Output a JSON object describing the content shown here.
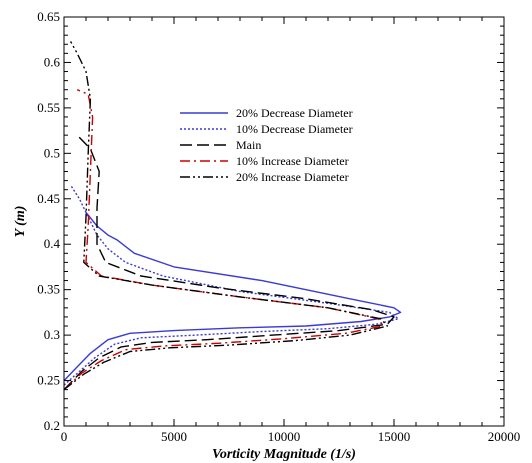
{
  "chart_data": {
    "type": "line",
    "title": "",
    "xlabel": "Vorticity Magnitude (1/s)",
    "ylabel": "Y (m)",
    "xlim": [
      0,
      20000
    ],
    "ylim": [
      0.2,
      0.65
    ],
    "xticks": [
      0,
      5000,
      10000,
      15000,
      20000
    ],
    "yticks": [
      0.2,
      0.25,
      0.3,
      0.35,
      0.4,
      0.45,
      0.5,
      0.55,
      0.6,
      0.65
    ],
    "xtick_labels": [
      "0",
      "5000",
      "10000",
      "15000",
      "20000"
    ],
    "ytick_labels": [
      "0.2",
      "0.25",
      "0.3",
      "0.35",
      "0.4",
      "0.45",
      "0.5",
      "0.55",
      "0.6",
      "0.65"
    ],
    "grid": false,
    "legend_position": "top-center",
    "series": [
      {
        "name": "20% Decrease Diameter",
        "color": "#3a3ad6",
        "dash": "solid",
        "x": [
          0,
          600,
          1200,
          2000,
          3000,
          5000,
          8000,
          11000,
          13500,
          14800,
          15300,
          15000,
          13000,
          9000,
          5000,
          3200,
          2400,
          2000,
          1500,
          1000
        ],
        "y": [
          0.25,
          0.265,
          0.28,
          0.295,
          0.302,
          0.305,
          0.308,
          0.31,
          0.315,
          0.32,
          0.325,
          0.33,
          0.34,
          0.36,
          0.375,
          0.39,
          0.405,
          0.41,
          0.42,
          0.435
        ]
      },
      {
        "name": "10% Decrease Diameter",
        "color": "#3a3ad6",
        "dash": "dot",
        "x": [
          0,
          700,
          1400,
          2300,
          3500,
          6000,
          9000,
          12000,
          14200,
          15200,
          14800,
          12000,
          8000,
          4500,
          2800,
          2000,
          1500,
          1100,
          700,
          300
        ],
        "y": [
          0.245,
          0.26,
          0.275,
          0.29,
          0.297,
          0.3,
          0.304,
          0.307,
          0.312,
          0.318,
          0.325,
          0.335,
          0.348,
          0.365,
          0.38,
          0.395,
          0.41,
          0.43,
          0.45,
          0.465
        ]
      },
      {
        "name": "Main",
        "color": "#000000",
        "dash": "dash",
        "x": [
          0,
          800,
          1600,
          2600,
          4000,
          6500,
          9500,
          12500,
          14700,
          15000,
          14000,
          11000,
          7000,
          3500,
          1900,
          1500,
          1500,
          1600,
          1200,
          600
        ],
        "y": [
          0.24,
          0.26,
          0.275,
          0.287,
          0.292,
          0.295,
          0.3,
          0.305,
          0.312,
          0.32,
          0.328,
          0.34,
          0.352,
          0.365,
          0.38,
          0.4,
          0.44,
          0.48,
          0.505,
          0.52
        ]
      },
      {
        "name": "10% Increase Diameter",
        "color": "#cc0000",
        "dash": "dashdot",
        "x": [
          0,
          800,
          1700,
          2800,
          4500,
          7000,
          10000,
          12800,
          14500,
          14300,
          12000,
          8000,
          4000,
          1700,
          1000,
          1100,
          1200,
          1300,
          1100,
          600
        ],
        "y": [
          0.24,
          0.258,
          0.272,
          0.284,
          0.288,
          0.291,
          0.296,
          0.302,
          0.31,
          0.318,
          0.33,
          0.342,
          0.355,
          0.365,
          0.38,
          0.42,
          0.48,
          0.54,
          0.565,
          0.57
        ]
      },
      {
        "name": "20% Increase Diameter",
        "color": "#000000",
        "dash": "dashdotdot",
        "x": [
          0,
          900,
          1800,
          3000,
          4800,
          7500,
          10500,
          13000,
          14700,
          14400,
          12000,
          8000,
          4000,
          1600,
          900,
          1000,
          1100,
          1200,
          1000,
          600,
          300
        ],
        "y": [
          0.24,
          0.257,
          0.27,
          0.282,
          0.286,
          0.289,
          0.294,
          0.3,
          0.31,
          0.318,
          0.33,
          0.342,
          0.355,
          0.365,
          0.38,
          0.43,
          0.5,
          0.56,
          0.59,
          0.61,
          0.623
        ]
      }
    ]
  }
}
